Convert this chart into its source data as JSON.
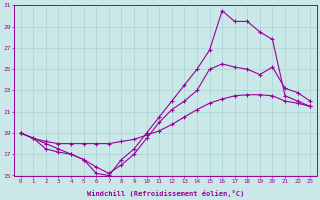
{
  "xlabel": "Windchill (Refroidissement éolien,°C)",
  "bg_color": "#cbe8e8",
  "line_color": "#990099",
  "grid_color": "#a8d4d4",
  "xlim": [
    -0.5,
    23.5
  ],
  "ylim": [
    15,
    31
  ],
  "xticks": [
    0,
    1,
    2,
    3,
    4,
    5,
    6,
    7,
    8,
    9,
    10,
    11,
    12,
    13,
    14,
    15,
    16,
    17,
    18,
    19,
    20,
    21,
    22,
    23
  ],
  "yticks": [
    15,
    17,
    19,
    21,
    23,
    25,
    27,
    29,
    31
  ],
  "series1_x": [
    0,
    1,
    2,
    3,
    4,
    5,
    6,
    7,
    8,
    9,
    10,
    11,
    12,
    13,
    14,
    15,
    16,
    17,
    18,
    19,
    20,
    21,
    22,
    23
  ],
  "series1_y": [
    19.0,
    18.5,
    18.2,
    18.0,
    18.0,
    18.0,
    18.0,
    18.0,
    18.2,
    18.4,
    18.8,
    19.2,
    19.8,
    20.5,
    21.2,
    21.8,
    22.2,
    22.5,
    22.6,
    22.6,
    22.5,
    22.0,
    21.8,
    21.5
  ],
  "series2_x": [
    0,
    1,
    2,
    3,
    4,
    5,
    6,
    7,
    8,
    9,
    10,
    11,
    12,
    13,
    14,
    15,
    16,
    17,
    18,
    19,
    20,
    21,
    22,
    23
  ],
  "series2_y": [
    19.0,
    18.5,
    18.0,
    17.5,
    17.0,
    16.5,
    15.8,
    15.2,
    16.0,
    17.0,
    18.5,
    20.0,
    21.2,
    22.0,
    23.0,
    25.0,
    25.5,
    25.2,
    25.0,
    24.5,
    25.2,
    23.2,
    22.8,
    22.0
  ],
  "series3_x": [
    0,
    1,
    2,
    3,
    4,
    5,
    6,
    7,
    8,
    9,
    10,
    11,
    12,
    13,
    14,
    15,
    16,
    17,
    18,
    19,
    20,
    21,
    22,
    23
  ],
  "series3_y": [
    19.0,
    18.5,
    17.5,
    17.2,
    17.0,
    16.5,
    15.2,
    15.0,
    16.5,
    17.5,
    19.0,
    20.5,
    22.0,
    23.5,
    25.0,
    26.8,
    30.5,
    29.5,
    29.5,
    28.5,
    27.8,
    22.5,
    22.0,
    21.5
  ]
}
